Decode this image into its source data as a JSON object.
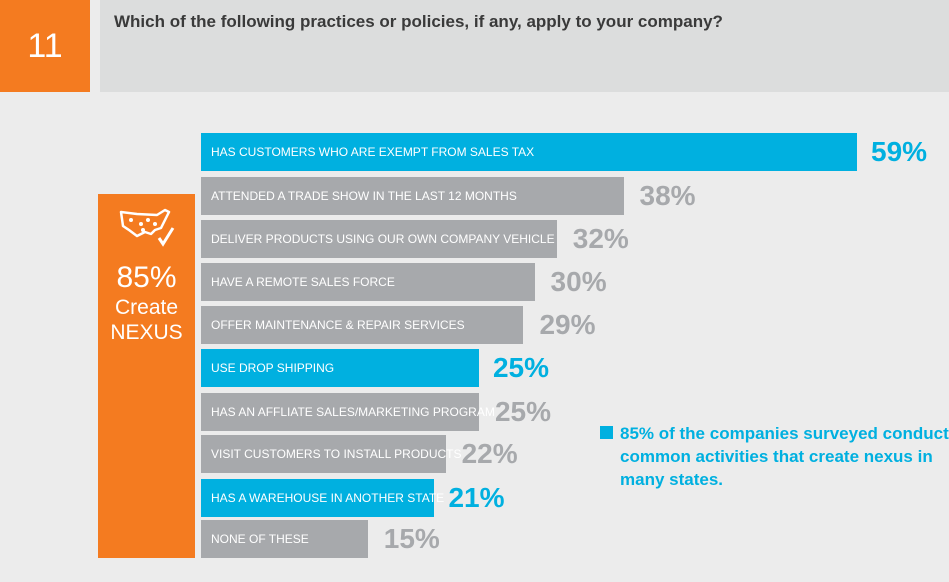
{
  "header": {
    "number": "11",
    "question": "Which of the following practices or policies, if any, apply to your company?"
  },
  "callout": {
    "icon": "us-map-check-icon",
    "percent": "85%",
    "line1": "Create",
    "line2": "NEXUS"
  },
  "note": "85% of the companies surveyed conduct common activities that create nexus in many states.",
  "colors": {
    "highlight": "#00b0e0",
    "default": "#a7a9ac",
    "accent": "#f47b20"
  },
  "chart_data": {
    "type": "bar",
    "orientation": "horizontal",
    "title": "Which of the following practices or policies, if any, apply to your company?",
    "categories": [
      "HAS CUSTOMERS WHO ARE EXEMPT FROM SALES TAX",
      "ATTENDED A TRADE SHOW IN THE LAST 12 MONTHS",
      "DELIVER PRODUCTS USING OUR OWN COMPANY VEHICLE",
      "HAVE A REMOTE SALES FORCE",
      "OFFER MAINTENANCE & REPAIR SERVICES",
      "USE DROP SHIPPING",
      "HAS AN AFFLIATE SALES/MARKETING PROGRAM",
      "VISIT CUSTOMERS TO INSTALL PRODUCTS",
      "HAS A WAREHOUSE IN ANOTHER STATE",
      "NONE OF THESE"
    ],
    "values": [
      59,
      38,
      32,
      30,
      29,
      25,
      25,
      22,
      21,
      15
    ],
    "labels": [
      "59%",
      "38%",
      "32%",
      "30%",
      "29%",
      "25%",
      "25%",
      "22%",
      "21%",
      "15%"
    ],
    "highlighted": [
      true,
      false,
      false,
      false,
      false,
      true,
      false,
      false,
      true,
      false
    ],
    "unit": "%"
  }
}
